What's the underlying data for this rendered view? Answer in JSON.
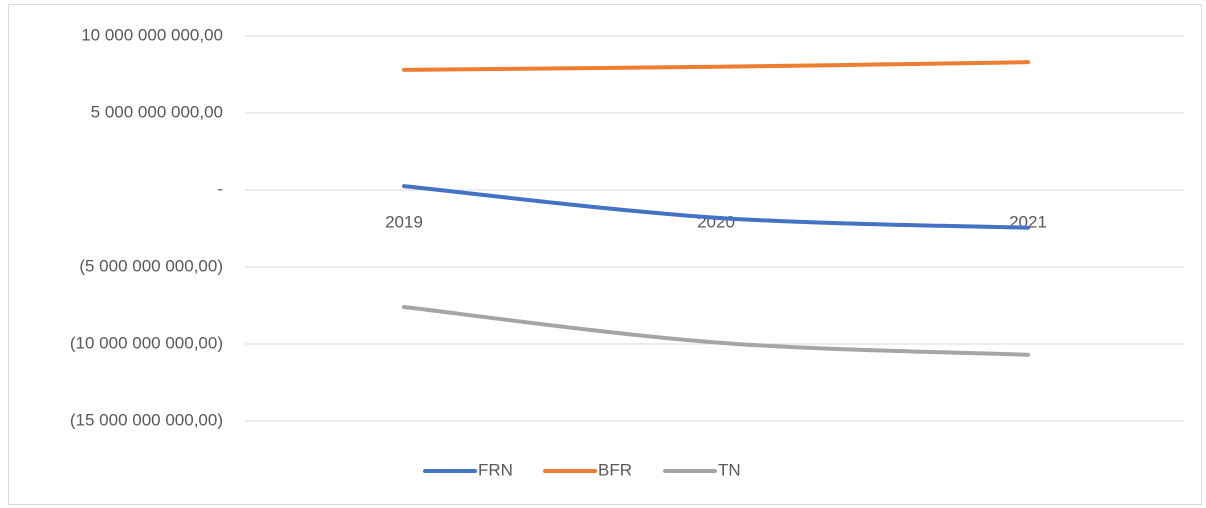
{
  "chart_data": {
    "type": "line",
    "categories": [
      "2019",
      "2020",
      "2021"
    ],
    "series": [
      {
        "name": "FRN",
        "color": "#4472c4",
        "values": [
          250000000,
          -1800000000,
          -2450000000
        ]
      },
      {
        "name": "BFR",
        "color": "#ed7d31",
        "values": [
          7800000000,
          8000000000,
          8300000000
        ]
      },
      {
        "name": "TN",
        "color": "#a5a5a5",
        "values": [
          -7600000000,
          -9900000000,
          -10700000000
        ]
      }
    ],
    "ylim": [
      -15000000000,
      10000000000
    ],
    "yticks": [
      {
        "value": 10000000000,
        "label": "10 000 000 000,00"
      },
      {
        "value": 5000000000,
        "label": "5 000 000 000,00"
      },
      {
        "value": 0,
        "label": "-"
      },
      {
        "value": -5000000000,
        "label": "(5 000 000 000,00)"
      },
      {
        "value": -10000000000,
        "label": "(10 000 000 000,00)"
      },
      {
        "value": -15000000000,
        "label": "(15 000 000 000,00)"
      }
    ],
    "grid": true,
    "legend": "bottom"
  }
}
